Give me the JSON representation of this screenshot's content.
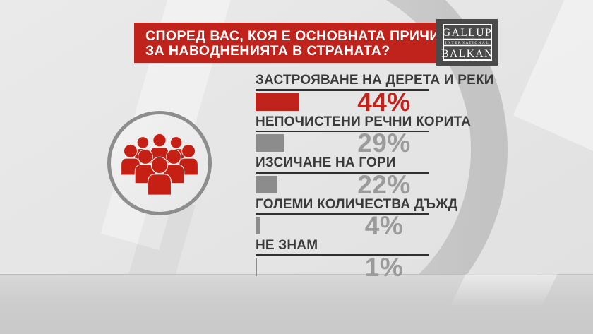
{
  "header": {
    "question_line1": "СПОРЕД ВАС, КОЯ Е ОСНОВНАТА ПРИЧИНА",
    "question_line2": "ЗА НАВОДНЕНИЯТА В СТРАНАТА?",
    "bg_color": "#c0231b",
    "text_color": "#ffffff"
  },
  "logo": {
    "line1": "GALLUP",
    "line2": "INTERNATIONAL",
    "line3": "BALKAN",
    "bg_color": "#4a4a4a",
    "text_color": "#ffffff"
  },
  "audience_icon": {
    "description": "crowd of people inside circle",
    "people_color": "#c62015",
    "ring_color": "#8d8d8d"
  },
  "background": {
    "ring_color": "#c6c6c6",
    "floor_color": "#cdcdcd"
  },
  "chart_data": {
    "type": "bar",
    "orientation": "horizontal",
    "title": "СПОРЕД ВАС, КОЯ Е ОСНОВНАТА ПРИЧИНА ЗА НАВОДНЕНИЯТА В СТРАНАТА?",
    "source": "GALLUP INTERNATIONAL BALKAN",
    "categories": [
      "ЗАСТРОЯВАНЕ НА ДЕРЕТА И РЕКИ",
      "НЕПОЧИСТЕНИ РЕЧНИ КОРИТА",
      "ИЗСИЧАНЕ НА ГОРИ",
      "ГОЛЕМИ КОЛИЧЕСТВА ДЪЖД",
      "НЕ ЗНАМ"
    ],
    "values": [
      44,
      29,
      22,
      4,
      1
    ],
    "value_labels": [
      "44%",
      "29%",
      "22%",
      "4%",
      "1%"
    ],
    "unit": "%",
    "xlim": [
      0,
      100
    ],
    "grid": false,
    "legend": false,
    "highlight_index": 0,
    "highlight_color": "#c0231b",
    "bar_color": "#8c8c8c",
    "value_gray_color": "#9b9b9b",
    "label_color": "#3a3a3a",
    "underline_color": "#2f2f2f"
  }
}
